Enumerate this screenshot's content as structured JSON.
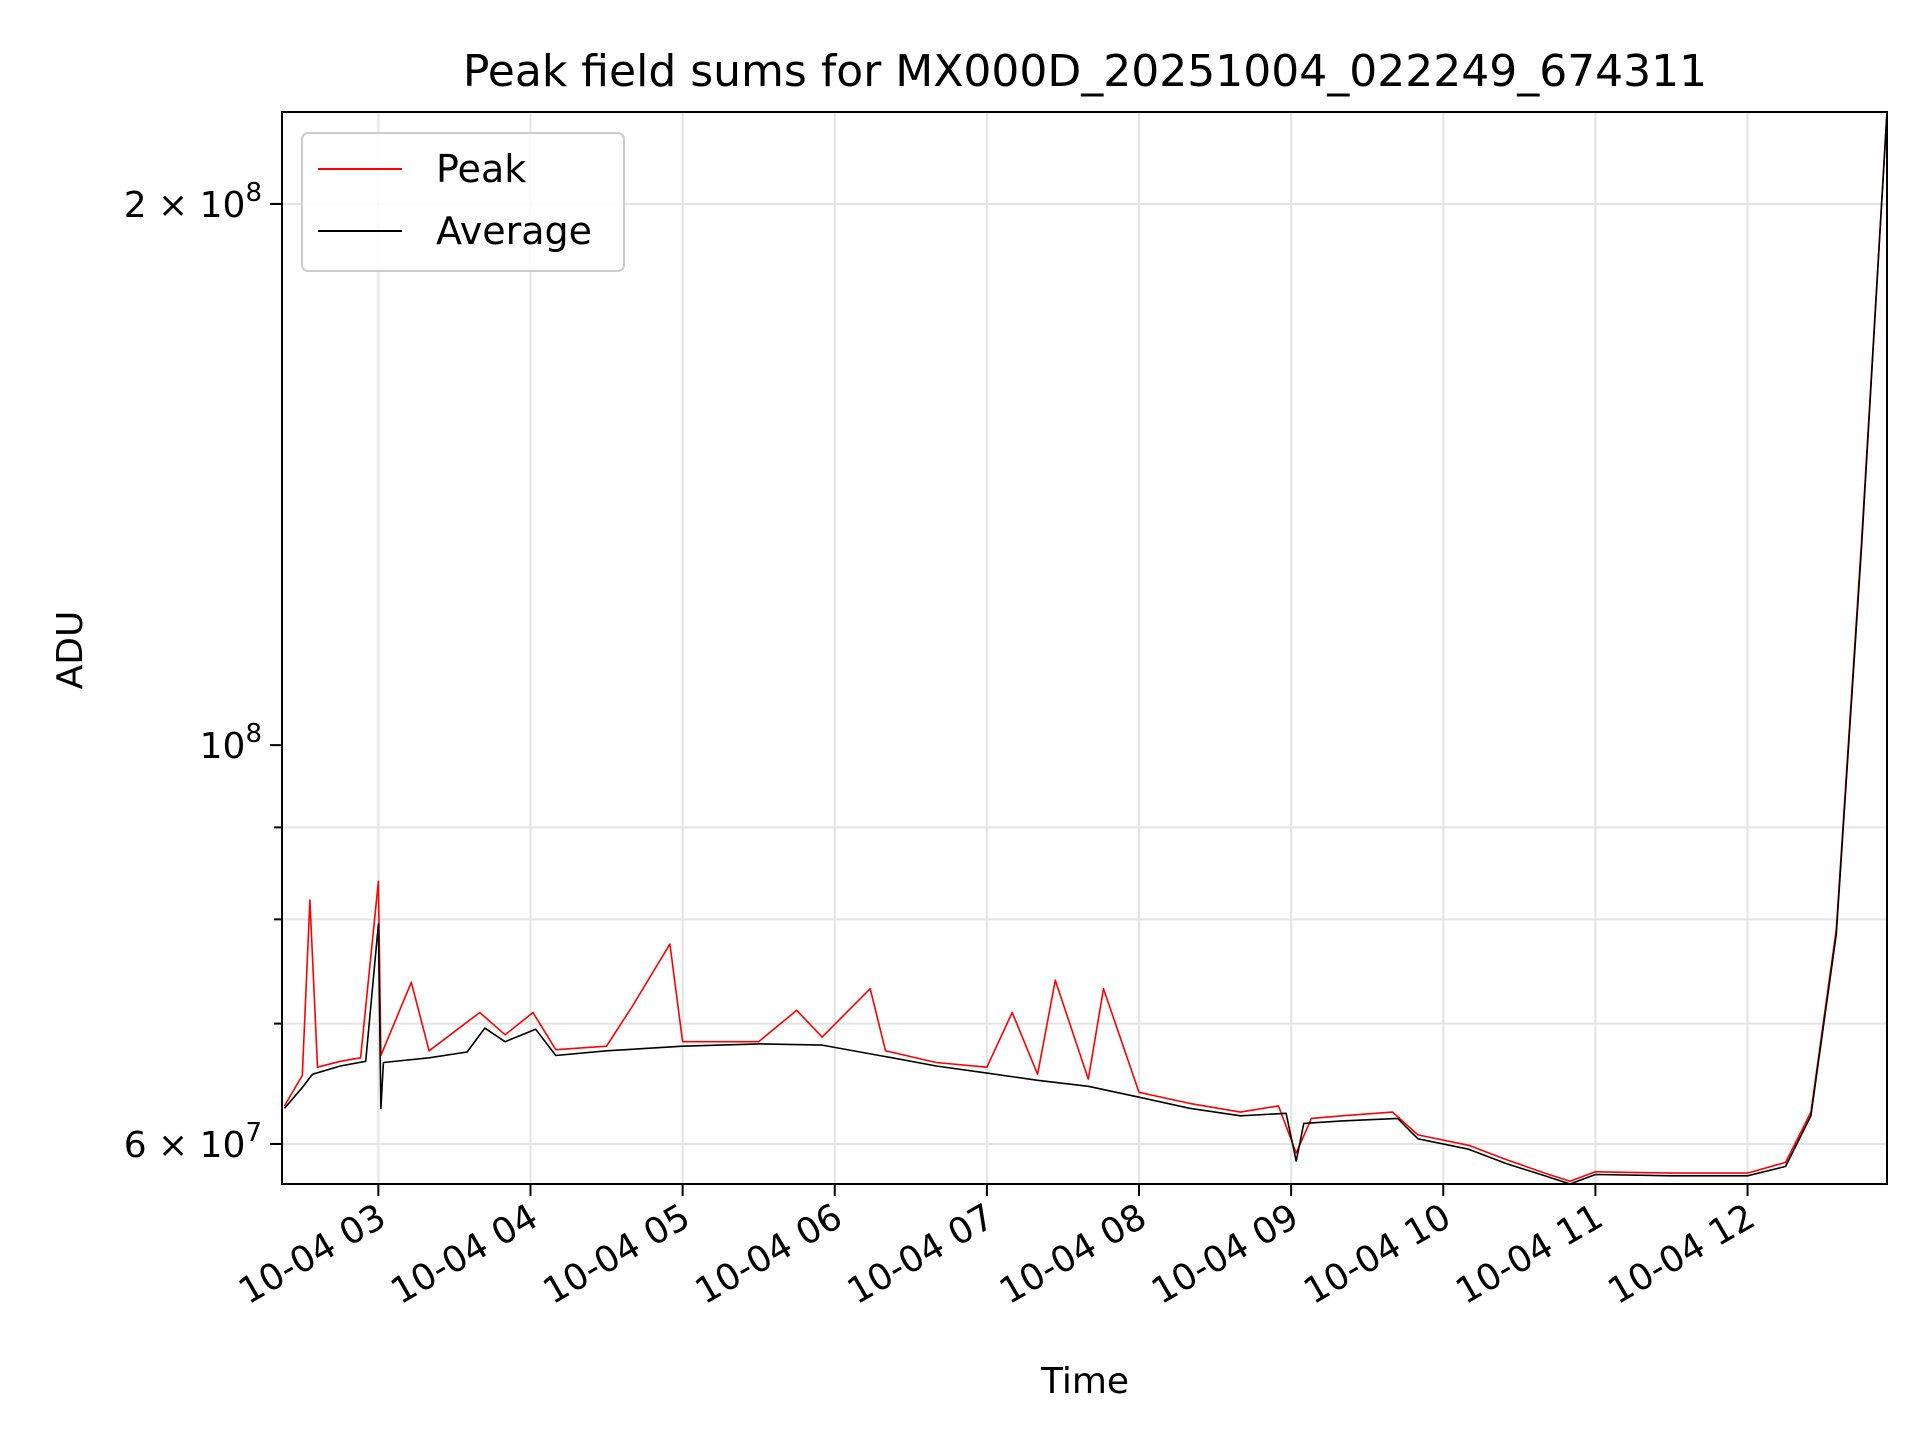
{
  "chart_data": {
    "type": "line",
    "title": "Peak field sums for MX000D_20251004_022249_674311",
    "xlabel": "Time",
    "ylabel": "ADU",
    "yscale": "log",
    "grid": true,
    "legend_position": "top-left",
    "x_range": [
      "10-04 02:22",
      "10-04 12:55"
    ],
    "ylim": [
      57000000,
      225000000
    ],
    "x_ticks": [
      "10-04 03",
      "10-04 04",
      "10-04 05",
      "10-04 06",
      "10-04 07",
      "10-04 08",
      "10-04 09",
      "10-04 10",
      "10-04 11",
      "10-04 12"
    ],
    "y_ticks": [
      {
        "value": 60000000,
        "base": "6 × 10",
        "exp": "7"
      },
      {
        "value": 100000000,
        "base": "10",
        "exp": "8"
      },
      {
        "value": 200000000,
        "base": "2 × 10",
        "exp": "8"
      }
    ],
    "series": [
      {
        "name": "Peak",
        "color": "#ff0000",
        "points": [
          [
            "10-04 02:23",
            63000000
          ],
          [
            "10-04 02:30",
            65500000
          ],
          [
            "10-04 02:33",
            82000000
          ],
          [
            "10-04 02:36",
            66200000
          ],
          [
            "10-04 02:45",
            66700000
          ],
          [
            "10-04 02:53",
            67000000
          ],
          [
            "10-04 03:00",
            84000000
          ],
          [
            "10-04 03:01",
            67200000
          ],
          [
            "10-04 03:13",
            73800000
          ],
          [
            "10-04 03:20",
            67600000
          ],
          [
            "10-04 03:40",
            71000000
          ],
          [
            "10-04 03:50",
            69000000
          ],
          [
            "10-04 04:01",
            71000000
          ],
          [
            "10-04 04:10",
            67700000
          ],
          [
            "10-04 04:30",
            68000000
          ],
          [
            "10-04 04:40",
            71500000
          ],
          [
            "10-04 04:55",
            77500000
          ],
          [
            "10-04 05:00",
            68400000
          ],
          [
            "10-04 05:30",
            68400000
          ],
          [
            "10-04 05:45",
            71200000
          ],
          [
            "10-04 05:55",
            68800000
          ],
          [
            "10-04 06:14",
            73200000
          ],
          [
            "10-04 06:20",
            67600000
          ],
          [
            "10-04 06:40",
            66600000
          ],
          [
            "10-04 07:00",
            66200000
          ],
          [
            "10-04 07:10",
            71000000
          ],
          [
            "10-04 07:20",
            65600000
          ],
          [
            "10-04 07:27",
            74000000
          ],
          [
            "10-04 07:40",
            65200000
          ],
          [
            "10-04 07:46",
            73200000
          ],
          [
            "10-04 08:00",
            64100000
          ],
          [
            "10-04 08:20",
            63200000
          ],
          [
            "10-04 08:40",
            62500000
          ],
          [
            "10-04 08:55",
            63000000
          ],
          [
            "10-04 09:02",
            59300000
          ],
          [
            "10-04 09:08",
            62000000
          ],
          [
            "10-04 09:20",
            62200000
          ],
          [
            "10-04 09:40",
            62500000
          ],
          [
            "10-04 09:50",
            60700000
          ],
          [
            "10-04 10:10",
            59900000
          ],
          [
            "10-04 10:25",
            58800000
          ],
          [
            "10-04 10:40",
            57800000
          ],
          [
            "10-04 10:50",
            57200000
          ],
          [
            "10-04 11:00",
            57900000
          ],
          [
            "10-04 11:30",
            57800000
          ],
          [
            "10-04 12:00",
            57800000
          ],
          [
            "10-04 12:15",
            58600000
          ],
          [
            "10-04 12:25",
            62500000
          ],
          [
            "10-04 12:35",
            79000000
          ],
          [
            "10-04 12:45",
            130000000
          ],
          [
            "10-04 12:55",
            225000000
          ]
        ]
      },
      {
        "name": "Average",
        "color": "#000000",
        "points": [
          [
            "10-04 02:23",
            62800000
          ],
          [
            "10-04 02:30",
            64500000
          ],
          [
            "10-04 02:34",
            65600000
          ],
          [
            "10-04 02:45",
            66300000
          ],
          [
            "10-04 02:55",
            66700000
          ],
          [
            "10-04 03:00",
            79500000
          ],
          [
            "10-04 03:01",
            62800000
          ],
          [
            "10-04 03:02",
            66600000
          ],
          [
            "10-04 03:20",
            67000000
          ],
          [
            "10-04 03:35",
            67500000
          ],
          [
            "10-04 03:42",
            69600000
          ],
          [
            "10-04 03:50",
            68400000
          ],
          [
            "10-04 04:02",
            69500000
          ],
          [
            "10-04 04:10",
            67200000
          ],
          [
            "10-04 04:30",
            67600000
          ],
          [
            "10-04 05:00",
            68000000
          ],
          [
            "10-04 05:30",
            68200000
          ],
          [
            "10-04 05:55",
            68100000
          ],
          [
            "10-04 06:20",
            67100000
          ],
          [
            "10-04 06:40",
            66300000
          ],
          [
            "10-04 07:00",
            65700000
          ],
          [
            "10-04 07:20",
            65100000
          ],
          [
            "10-04 07:40",
            64600000
          ],
          [
            "10-04 08:00",
            63700000
          ],
          [
            "10-04 08:20",
            62800000
          ],
          [
            "10-04 08:40",
            62200000
          ],
          [
            "10-04 08:58",
            62400000
          ],
          [
            "10-04 09:02",
            58700000
          ],
          [
            "10-04 09:05",
            61600000
          ],
          [
            "10-04 09:20",
            61800000
          ],
          [
            "10-04 09:42",
            62000000
          ],
          [
            "10-04 09:50",
            60400000
          ],
          [
            "10-04 10:10",
            59600000
          ],
          [
            "10-04 10:25",
            58500000
          ],
          [
            "10-04 10:40",
            57600000
          ],
          [
            "10-04 10:50",
            57000000
          ],
          [
            "10-04 11:00",
            57700000
          ],
          [
            "10-04 11:30",
            57600000
          ],
          [
            "10-04 12:00",
            57600000
          ],
          [
            "10-04 12:15",
            58300000
          ],
          [
            "10-04 12:25",
            62200000
          ],
          [
            "10-04 12:35",
            78500000
          ],
          [
            "10-04 12:45",
            129000000
          ],
          [
            "10-04 12:55",
            225000000
          ]
        ]
      }
    ]
  }
}
